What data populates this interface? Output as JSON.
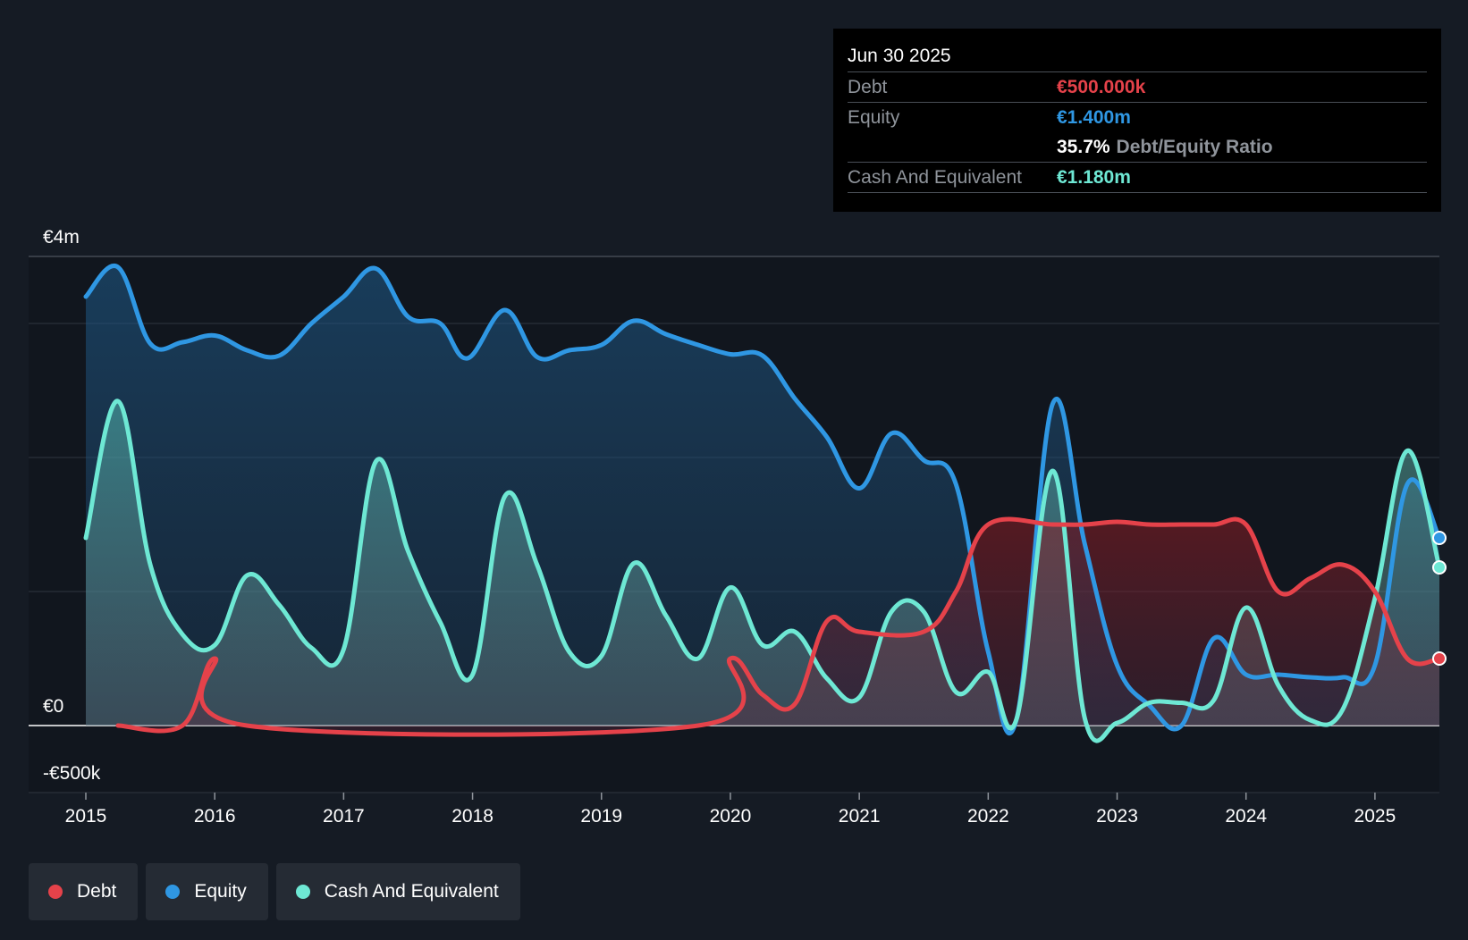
{
  "tooltip": {
    "date": "Jun 30 2025",
    "debt_label": "Debt",
    "debt_value": "€500.000k",
    "equity_label": "Equity",
    "equity_value": "€1.400m",
    "ratio_value": "35.7%",
    "ratio_label": "Debt/Equity Ratio",
    "cash_label": "Cash And Equivalent",
    "cash_value": "€1.180m"
  },
  "legend": [
    {
      "label": "Debt",
      "color": "#e5424a"
    },
    {
      "label": "Equity",
      "color": "#2f97e3"
    },
    {
      "label": "Cash And Equivalent",
      "color": "#6ee8d4"
    }
  ],
  "chart_data": {
    "type": "area",
    "title": "",
    "xlabel": "",
    "ylabel": "",
    "ylim": [
      -0.5,
      3.5
    ],
    "xlim": [
      2015.0,
      2025.5
    ],
    "y_tick_labels": [
      {
        "value": 3.5,
        "label": "€4m"
      },
      {
        "value": 0,
        "label": "€0"
      },
      {
        "value": -0.5,
        "label": "-€500k"
      }
    ],
    "gridlines": [
      3.5,
      3.0,
      2.0,
      1.0,
      0,
      -0.5
    ],
    "x_ticks": [
      2015,
      2016,
      2017,
      2018,
      2019,
      2020,
      2021,
      2022,
      2023,
      2024,
      2025
    ],
    "x_tick_labels": [
      "2015",
      "2016",
      "2017",
      "2018",
      "2019",
      "2020",
      "2021",
      "2022",
      "2023",
      "2024",
      "2025"
    ],
    "series": [
      {
        "name": "Equity",
        "color": "#2f97e3",
        "x": [
          2015.0,
          2015.25,
          2015.5,
          2015.75,
          2016.0,
          2016.25,
          2016.5,
          2016.75,
          2017.0,
          2017.25,
          2017.5,
          2017.75,
          2017.96,
          2018.25,
          2018.5,
          2018.75,
          2019.0,
          2019.25,
          2019.5,
          2019.75,
          2020.0,
          2020.25,
          2020.5,
          2020.75,
          2021.0,
          2021.25,
          2021.5,
          2021.75,
          2022.0,
          2022.22,
          2022.5,
          2022.75,
          2023.0,
          2023.25,
          2023.5,
          2023.75,
          2024.0,
          2024.25,
          2024.5,
          2024.75,
          2025.0,
          2025.25,
          2025.5
        ],
        "values": [
          3.2,
          3.42,
          2.85,
          2.86,
          2.91,
          2.8,
          2.76,
          3.0,
          3.2,
          3.41,
          3.05,
          3.0,
          2.74,
          3.1,
          2.75,
          2.8,
          2.84,
          3.02,
          2.92,
          2.84,
          2.77,
          2.76,
          2.44,
          2.15,
          1.77,
          2.18,
          1.98,
          1.8,
          0.55,
          0.05,
          2.4,
          1.35,
          0.45,
          0.15,
          0.0,
          0.65,
          0.38,
          0.38,
          0.36,
          0.36,
          0.45,
          1.8,
          1.4
        ]
      },
      {
        "name": "Cash And Equivalent",
        "color": "#6ee8d4",
        "x": [
          2015.0,
          2015.25,
          2015.5,
          2015.75,
          2016.0,
          2016.25,
          2016.5,
          2016.75,
          2017.0,
          2017.25,
          2017.5,
          2017.75,
          2018.0,
          2018.25,
          2018.5,
          2018.75,
          2019.0,
          2019.25,
          2019.5,
          2019.75,
          2020.0,
          2020.25,
          2020.5,
          2020.75,
          2021.0,
          2021.25,
          2021.5,
          2021.75,
          2022.0,
          2022.22,
          2022.5,
          2022.75,
          2023.0,
          2023.25,
          2023.5,
          2023.75,
          2024.0,
          2024.25,
          2024.5,
          2024.75,
          2025.0,
          2025.25,
          2025.5
        ],
        "values": [
          1.4,
          2.42,
          1.2,
          0.68,
          0.6,
          1.12,
          0.9,
          0.58,
          0.57,
          1.97,
          1.3,
          0.77,
          0.38,
          1.71,
          1.2,
          0.55,
          0.52,
          1.21,
          0.82,
          0.5,
          1.03,
          0.6,
          0.7,
          0.35,
          0.21,
          0.85,
          0.85,
          0.25,
          0.4,
          0.05,
          1.9,
          0.05,
          0.02,
          0.17,
          0.17,
          0.19,
          0.88,
          0.3,
          0.04,
          0.12,
          0.95,
          2.05,
          1.18
        ]
      },
      {
        "name": "Debt",
        "color": "#e5424a",
        "x": [
          2015.25,
          2015.75,
          2016.0,
          2016.25,
          2019.75,
          2020.0,
          2020.25,
          2020.5,
          2020.75,
          2021.0,
          2021.5,
          2021.75,
          2022.0,
          2022.5,
          2022.75,
          2023.0,
          2023.25,
          2023.5,
          2023.75,
          2024.0,
          2024.25,
          2024.5,
          2024.75,
          2025.0,
          2025.25,
          2025.5
        ],
        "values": [
          0.0,
          0.0,
          0.5,
          0.0,
          0.0,
          0.5,
          0.23,
          0.16,
          0.78,
          0.7,
          0.7,
          1.0,
          1.5,
          1.5,
          1.5,
          1.52,
          1.5,
          1.5,
          1.5,
          1.5,
          1.0,
          1.1,
          1.2,
          1.0,
          0.5,
          0.5
        ]
      }
    ]
  }
}
